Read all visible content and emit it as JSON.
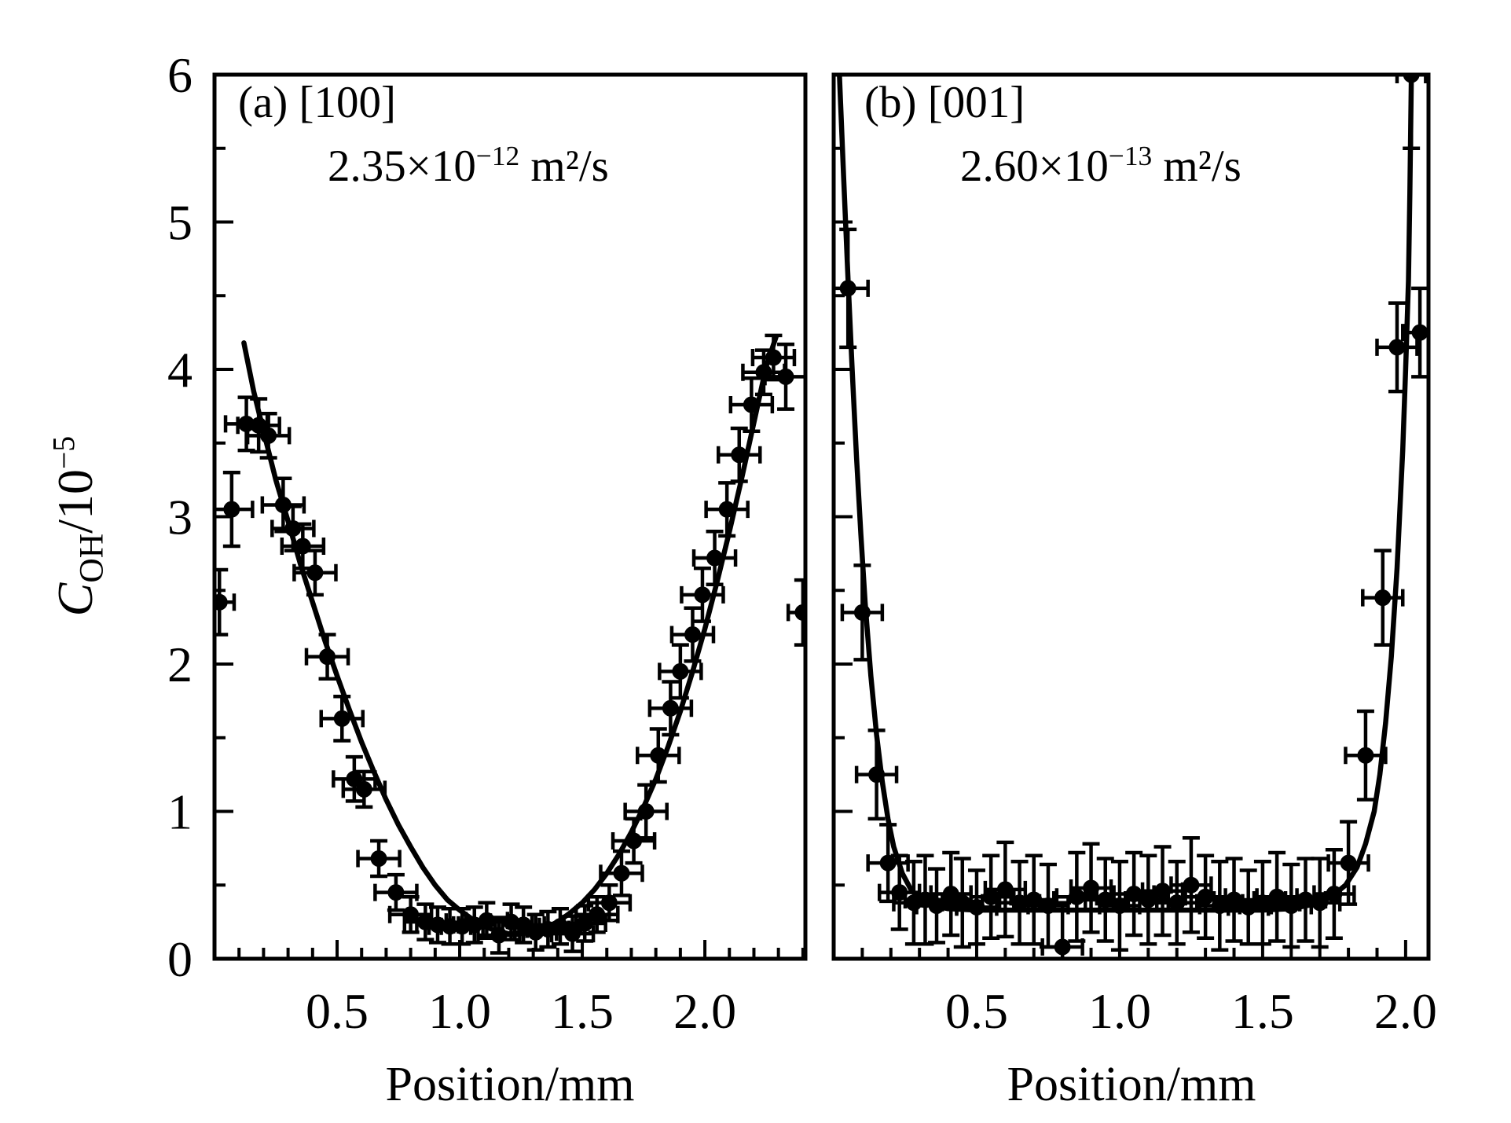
{
  "figure": {
    "ylabel": {
      "c": "C",
      "sub": "OH",
      "slash": "/10",
      "exp": "−5"
    },
    "accent_color": "#000000",
    "background_color": "#ffffff"
  },
  "chart_data": [
    {
      "type": "scatter",
      "panel_label": "(a) [100]",
      "diff": {
        "base": "2.35×10",
        "exp": "−12",
        "unit": " m²/s"
      },
      "xlabel": "Position/mm",
      "ylabel": "C_OH/10^-5",
      "xlim": [
        0,
        2.41
      ],
      "ylim": [
        0,
        6
      ],
      "xticks_major": [
        0.5,
        1.0,
        1.5,
        2.0
      ],
      "xtick_labels": [
        "0.5",
        "1.0",
        "1.5",
        "2.0"
      ],
      "x_minor_step": 0.1,
      "yticks_major": [
        1,
        2,
        3,
        4,
        5
      ],
      "ytick_values": [
        0,
        1,
        2,
        3,
        4,
        5,
        6
      ],
      "ytick_labels": [
        "0",
        "1",
        "2",
        "3",
        "4",
        "5",
        "6"
      ],
      "y_minor_step": 0.5,
      "grid": false,
      "legend": "none",
      "points": [
        {
          "x": 0.02,
          "y": 2.42,
          "ex": 0.06,
          "ey": 0.22
        },
        {
          "x": 0.07,
          "y": 3.05,
          "ex": 0.085,
          "ey": 0.25
        },
        {
          "x": 0.13,
          "y": 3.63,
          "ex": 0.085,
          "ey": 0.18
        },
        {
          "x": 0.18,
          "y": 3.62,
          "ex": 0.085,
          "ey": 0.18
        },
        {
          "x": 0.22,
          "y": 3.55,
          "ex": 0.085,
          "ey": 0.15
        },
        {
          "x": 0.28,
          "y": 3.08,
          "ex": 0.085,
          "ey": 0.18
        },
        {
          "x": 0.32,
          "y": 2.92,
          "ex": 0.085,
          "ey": 0.15
        },
        {
          "x": 0.36,
          "y": 2.8,
          "ex": 0.085,
          "ey": 0.15
        },
        {
          "x": 0.41,
          "y": 2.62,
          "ex": 0.085,
          "ey": 0.15
        },
        {
          "x": 0.46,
          "y": 2.05,
          "ex": 0.085,
          "ey": 0.15
        },
        {
          "x": 0.52,
          "y": 1.63,
          "ex": 0.085,
          "ey": 0.15
        },
        {
          "x": 0.57,
          "y": 1.22,
          "ex": 0.085,
          "ey": 0.15
        },
        {
          "x": 0.61,
          "y": 1.15,
          "ex": 0.085,
          "ey": 0.12
        },
        {
          "x": 0.67,
          "y": 0.68,
          "ex": 0.085,
          "ey": 0.12
        },
        {
          "x": 0.74,
          "y": 0.45,
          "ex": 0.085,
          "ey": 0.12
        },
        {
          "x": 0.8,
          "y": 0.3,
          "ex": 0.085,
          "ey": 0.12
        },
        {
          "x": 0.86,
          "y": 0.25,
          "ex": 0.085,
          "ey": 0.12
        },
        {
          "x": 0.91,
          "y": 0.23,
          "ex": 0.085,
          "ey": 0.12
        },
        {
          "x": 0.96,
          "y": 0.22,
          "ex": 0.085,
          "ey": 0.12
        },
        {
          "x": 1.01,
          "y": 0.22,
          "ex": 0.085,
          "ey": 0.12
        },
        {
          "x": 1.06,
          "y": 0.23,
          "ex": 0.085,
          "ey": 0.12
        },
        {
          "x": 1.11,
          "y": 0.26,
          "ex": 0.085,
          "ey": 0.12
        },
        {
          "x": 1.16,
          "y": 0.16,
          "ex": 0.085,
          "ey": 0.12
        },
        {
          "x": 1.21,
          "y": 0.25,
          "ex": 0.085,
          "ey": 0.12
        },
        {
          "x": 1.26,
          "y": 0.23,
          "ex": 0.085,
          "ey": 0.12
        },
        {
          "x": 1.31,
          "y": 0.18,
          "ex": 0.085,
          "ey": 0.12
        },
        {
          "x": 1.36,
          "y": 0.2,
          "ex": 0.085,
          "ey": 0.12
        },
        {
          "x": 1.41,
          "y": 0.22,
          "ex": 0.085,
          "ey": 0.12
        },
        {
          "x": 1.46,
          "y": 0.17,
          "ex": 0.085,
          "ey": 0.12
        },
        {
          "x": 1.51,
          "y": 0.24,
          "ex": 0.085,
          "ey": 0.12
        },
        {
          "x": 1.56,
          "y": 0.3,
          "ex": 0.085,
          "ey": 0.12
        },
        {
          "x": 1.61,
          "y": 0.38,
          "ex": 0.085,
          "ey": 0.12
        },
        {
          "x": 1.66,
          "y": 0.58,
          "ex": 0.085,
          "ey": 0.15
        },
        {
          "x": 1.71,
          "y": 0.8,
          "ex": 0.085,
          "ey": 0.15
        },
        {
          "x": 1.76,
          "y": 1.0,
          "ex": 0.085,
          "ey": 0.18
        },
        {
          "x": 1.81,
          "y": 1.38,
          "ex": 0.085,
          "ey": 0.18
        },
        {
          "x": 1.86,
          "y": 1.7,
          "ex": 0.085,
          "ey": 0.18
        },
        {
          "x": 1.9,
          "y": 1.95,
          "ex": 0.085,
          "ey": 0.18
        },
        {
          "x": 1.95,
          "y": 2.2,
          "ex": 0.085,
          "ey": 0.18
        },
        {
          "x": 1.99,
          "y": 2.47,
          "ex": 0.085,
          "ey": 0.18
        },
        {
          "x": 2.04,
          "y": 2.72,
          "ex": 0.085,
          "ey": 0.18
        },
        {
          "x": 2.09,
          "y": 3.05,
          "ex": 0.085,
          "ey": 0.18
        },
        {
          "x": 2.14,
          "y": 3.42,
          "ex": 0.085,
          "ey": 0.18
        },
        {
          "x": 2.19,
          "y": 3.76,
          "ex": 0.085,
          "ey": 0.18
        },
        {
          "x": 2.24,
          "y": 3.98,
          "ex": 0.085,
          "ey": 0.15
        },
        {
          "x": 2.28,
          "y": 4.08,
          "ex": 0.085,
          "ey": 0.15
        },
        {
          "x": 2.33,
          "y": 3.95,
          "ex": 0.085,
          "ey": 0.22
        },
        {
          "x": 2.4,
          "y": 2.35,
          "ex": 0.06,
          "ey": 0.22
        }
      ],
      "curve": [
        [
          0.12,
          4.18
        ],
        [
          0.16,
          3.85
        ],
        [
          0.2,
          3.58
        ],
        [
          0.25,
          3.25
        ],
        [
          0.3,
          2.97
        ],
        [
          0.35,
          2.68
        ],
        [
          0.4,
          2.42
        ],
        [
          0.45,
          2.16
        ],
        [
          0.5,
          1.92
        ],
        [
          0.55,
          1.69
        ],
        [
          0.6,
          1.47
        ],
        [
          0.65,
          1.27
        ],
        [
          0.7,
          1.08
        ],
        [
          0.75,
          0.91
        ],
        [
          0.8,
          0.76
        ],
        [
          0.85,
          0.62
        ],
        [
          0.9,
          0.5
        ],
        [
          0.95,
          0.4
        ],
        [
          1.0,
          0.33
        ],
        [
          1.05,
          0.27
        ],
        [
          1.1,
          0.22
        ],
        [
          1.15,
          0.19
        ],
        [
          1.2,
          0.17
        ],
        [
          1.25,
          0.17
        ],
        [
          1.3,
          0.18
        ],
        [
          1.35,
          0.21
        ],
        [
          1.4,
          0.25
        ],
        [
          1.45,
          0.31
        ],
        [
          1.5,
          0.38
        ],
        [
          1.55,
          0.47
        ],
        [
          1.6,
          0.58
        ],
        [
          1.65,
          0.71
        ],
        [
          1.7,
          0.86
        ],
        [
          1.75,
          1.03
        ],
        [
          1.8,
          1.22
        ],
        [
          1.85,
          1.44
        ],
        [
          1.9,
          1.68
        ],
        [
          1.95,
          1.95
        ],
        [
          2.0,
          2.24
        ],
        [
          2.05,
          2.56
        ],
        [
          2.1,
          2.9
        ],
        [
          2.15,
          3.26
        ],
        [
          2.2,
          3.64
        ],
        [
          2.25,
          4.02
        ],
        [
          2.29,
          4.22
        ]
      ]
    },
    {
      "type": "scatter",
      "panel_label": "(b) [001]",
      "diff": {
        "base": "2.60×10",
        "exp": "−13",
        "unit": " m²/s"
      },
      "xlabel": "Position/mm",
      "ylabel": "C_OH/10^-5",
      "xlim": [
        0,
        2.08
      ],
      "ylim": [
        0,
        6
      ],
      "xticks_major": [
        0.5,
        1.0,
        1.5,
        2.0
      ],
      "xtick_labels": [
        "0.5",
        "1.0",
        "1.5",
        "2.0"
      ],
      "x_minor_step": 0.1,
      "yticks_major": [
        1,
        2,
        3,
        4,
        5
      ],
      "ytick_values": [],
      "ytick_labels": [],
      "y_minor_step": 0.5,
      "grid": false,
      "legend": "none",
      "points": [
        {
          "x": 0.05,
          "y": 4.55,
          "ex": 0.07,
          "ey": 0.4
        },
        {
          "x": 0.1,
          "y": 2.35,
          "ex": 0.07,
          "ey": 0.32
        },
        {
          "x": 0.15,
          "y": 1.25,
          "ex": 0.07,
          "ey": 0.3
        },
        {
          "x": 0.19,
          "y": 0.65,
          "ex": 0.07,
          "ey": 0.26
        },
        {
          "x": 0.23,
          "y": 0.45,
          "ex": 0.07,
          "ey": 0.25
        },
        {
          "x": 0.28,
          "y": 0.38,
          "ex": 0.07,
          "ey": 0.28
        },
        {
          "x": 0.32,
          "y": 0.4,
          "ex": 0.07,
          "ey": 0.3
        },
        {
          "x": 0.36,
          "y": 0.36,
          "ex": 0.07,
          "ey": 0.25
        },
        {
          "x": 0.41,
          "y": 0.44,
          "ex": 0.07,
          "ey": 0.28
        },
        {
          "x": 0.45,
          "y": 0.38,
          "ex": 0.07,
          "ey": 0.3
        },
        {
          "x": 0.5,
          "y": 0.35,
          "ex": 0.07,
          "ey": 0.25
        },
        {
          "x": 0.55,
          "y": 0.42,
          "ex": 0.07,
          "ey": 0.28
        },
        {
          "x": 0.6,
          "y": 0.47,
          "ex": 0.07,
          "ey": 0.32
        },
        {
          "x": 0.65,
          "y": 0.38,
          "ex": 0.07,
          "ey": 0.28
        },
        {
          "x": 0.7,
          "y": 0.4,
          "ex": 0.07,
          "ey": 0.3
        },
        {
          "x": 0.75,
          "y": 0.36,
          "ex": 0.07,
          "ey": 0.28
        },
        {
          "x": 0.8,
          "y": 0.08,
          "ex": 0.07,
          "ey": 0.3
        },
        {
          "x": 0.85,
          "y": 0.42,
          "ex": 0.07,
          "ey": 0.3
        },
        {
          "x": 0.9,
          "y": 0.48,
          "ex": 0.07,
          "ey": 0.3
        },
        {
          "x": 0.95,
          "y": 0.4,
          "ex": 0.07,
          "ey": 0.28
        },
        {
          "x": 1.0,
          "y": 0.36,
          "ex": 0.07,
          "ey": 0.3
        },
        {
          "x": 1.05,
          "y": 0.44,
          "ex": 0.07,
          "ey": 0.28
        },
        {
          "x": 1.1,
          "y": 0.4,
          "ex": 0.07,
          "ey": 0.3
        },
        {
          "x": 1.15,
          "y": 0.46,
          "ex": 0.07,
          "ey": 0.3
        },
        {
          "x": 1.2,
          "y": 0.38,
          "ex": 0.07,
          "ey": 0.28
        },
        {
          "x": 1.25,
          "y": 0.5,
          "ex": 0.07,
          "ey": 0.32
        },
        {
          "x": 1.3,
          "y": 0.42,
          "ex": 0.07,
          "ey": 0.28
        },
        {
          "x": 1.35,
          "y": 0.36,
          "ex": 0.07,
          "ey": 0.3
        },
        {
          "x": 1.4,
          "y": 0.4,
          "ex": 0.07,
          "ey": 0.28
        },
        {
          "x": 1.45,
          "y": 0.35,
          "ex": 0.07,
          "ey": 0.25
        },
        {
          "x": 1.5,
          "y": 0.38,
          "ex": 0.07,
          "ey": 0.28
        },
        {
          "x": 1.55,
          "y": 0.42,
          "ex": 0.07,
          "ey": 0.3
        },
        {
          "x": 1.6,
          "y": 0.36,
          "ex": 0.07,
          "ey": 0.28
        },
        {
          "x": 1.65,
          "y": 0.4,
          "ex": 0.07,
          "ey": 0.28
        },
        {
          "x": 1.7,
          "y": 0.38,
          "ex": 0.07,
          "ey": 0.3
        },
        {
          "x": 1.75,
          "y": 0.44,
          "ex": 0.07,
          "ey": 0.3
        },
        {
          "x": 1.8,
          "y": 0.65,
          "ex": 0.07,
          "ey": 0.28
        },
        {
          "x": 1.86,
          "y": 1.38,
          "ex": 0.07,
          "ey": 0.3
        },
        {
          "x": 1.92,
          "y": 2.45,
          "ex": 0.07,
          "ey": 0.32
        },
        {
          "x": 1.97,
          "y": 4.15,
          "ex": 0.07,
          "ey": 0.3
        },
        {
          "x": 2.05,
          "y": 4.25,
          "ex": 0.06,
          "ey": 0.3
        },
        {
          "x": 2.02,
          "y": 6.0,
          "ex": 0.05,
          "ey": 0.5
        }
      ],
      "curve": [
        [
          0.02,
          6.0
        ],
        [
          0.035,
          5.3
        ],
        [
          0.05,
          4.62
        ],
        [
          0.065,
          3.98
        ],
        [
          0.08,
          3.4
        ],
        [
          0.095,
          2.88
        ],
        [
          0.11,
          2.42
        ],
        [
          0.13,
          1.92
        ],
        [
          0.15,
          1.52
        ],
        [
          0.17,
          1.2
        ],
        [
          0.19,
          0.95
        ],
        [
          0.21,
          0.76
        ],
        [
          0.24,
          0.58
        ],
        [
          0.27,
          0.47
        ],
        [
          0.3,
          0.41
        ],
        [
          0.35,
          0.36
        ],
        [
          0.4,
          0.34
        ],
        [
          0.5,
          0.33
        ],
        [
          0.7,
          0.33
        ],
        [
          0.9,
          0.33
        ],
        [
          1.1,
          0.33
        ],
        [
          1.3,
          0.33
        ],
        [
          1.5,
          0.33
        ],
        [
          1.6,
          0.34
        ],
        [
          1.68,
          0.37
        ],
        [
          1.74,
          0.42
        ],
        [
          1.79,
          0.5
        ],
        [
          1.83,
          0.62
        ],
        [
          1.86,
          0.78
        ],
        [
          1.89,
          1.0
        ],
        [
          1.91,
          1.25
        ],
        [
          1.93,
          1.6
        ],
        [
          1.95,
          2.05
        ],
        [
          1.97,
          2.65
        ],
        [
          1.99,
          3.45
        ],
        [
          2.0,
          4.0
        ],
        [
          2.01,
          4.6
        ],
        [
          2.015,
          5.2
        ],
        [
          2.02,
          6.0
        ]
      ]
    }
  ]
}
